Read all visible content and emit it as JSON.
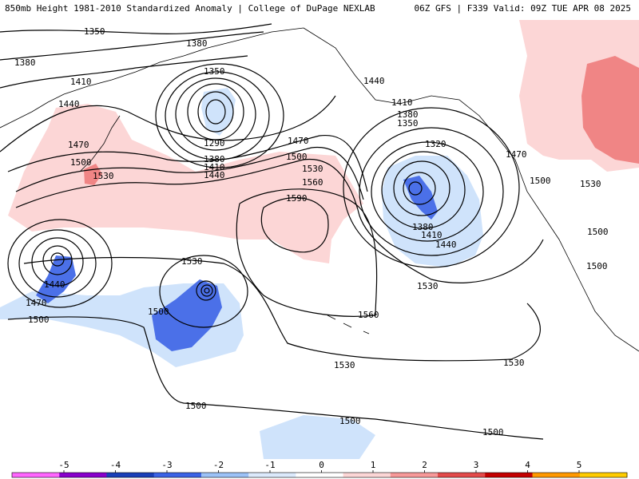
{
  "header": {
    "title": "850mb Height 1981-2010 Standardized Anomaly | College of DuPage NEXLAB",
    "run_info": "06Z GFS | F339 Valid: 09Z TUE APR 08 2025"
  },
  "contour_labels": [
    "1350",
    "1380",
    "1380",
    "1410",
    "1440",
    "1350",
    "1290",
    "1380",
    "1410",
    "1440",
    "1470",
    "1500",
    "1530",
    "1470",
    "1500",
    "1530",
    "1560",
    "1590",
    "1440",
    "1410",
    "1380",
    "1350",
    "1320",
    "1380",
    "1410",
    "1440",
    "1470",
    "1500",
    "1530",
    "1500",
    "1500",
    "1530",
    "1440",
    "1470",
    "1500",
    "1500",
    "1560",
    "1530",
    "1530",
    "1530",
    "1500",
    "1500",
    "1500"
  ],
  "colorbar": {
    "ticks": [
      "-5",
      "-4",
      "-3",
      "-2",
      "-1",
      "0",
      "1",
      "2",
      "3",
      "4",
      "5"
    ],
    "colors": [
      "#ff66ff",
      "#8800cc",
      "#1a3fb8",
      "#3b63e6",
      "#9cc2f7",
      "#dceafc",
      "#ffffff",
      "#fcd6d6",
      "#f79999",
      "#e34a4a",
      "#c40000",
      "#ff9900",
      "#ffcc00"
    ]
  }
}
